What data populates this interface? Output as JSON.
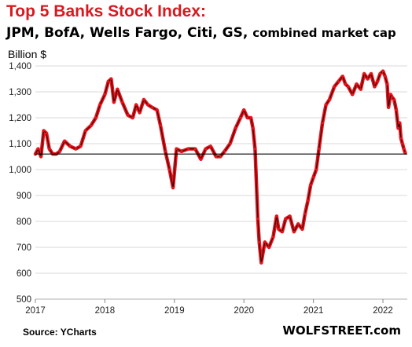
{
  "title": "Top 5 Banks Stock Index:",
  "subtitle_main": "JPM, BofA, Wells Fargo, Citi, GS,",
  "subtitle_tail": "combined market cap",
  "unit_label": "Billion $",
  "source": "Source: YCharts",
  "brand": "WOLFSTREET.com",
  "colors": {
    "line": "#e8141b",
    "line_core": "#3a0a0a",
    "grid": "#d9d9d9",
    "reference_line": "#000000"
  },
  "chart_data": {
    "type": "line",
    "title": "Top 5 Banks Stock Index:",
    "subtitle": "JPM, BofA, Wells Fargo, Citi, GS, combined market cap",
    "ylabel": "Billion $",
    "ylim": [
      500,
      1400
    ],
    "yticks": [
      500,
      600,
      700,
      800,
      900,
      1000,
      1100,
      1200,
      1300,
      1400
    ],
    "ytick_labels": [
      "500",
      "600",
      "700",
      "800",
      "900",
      "1,000",
      "1,100",
      "1,200",
      "1,300",
      "1,400"
    ],
    "xlim": [
      2017.0,
      2022.35
    ],
    "xticks": [
      2017,
      2018,
      2019,
      2020,
      2021,
      2022
    ],
    "xtick_labels": [
      "2017",
      "2018",
      "2019",
      "2020",
      "2021",
      "2022"
    ],
    "grid": "horizontal",
    "reference_line": 1060,
    "series": [
      {
        "x": [
          2017.0,
          2017.04,
          2017.08,
          2017.12,
          2017.16,
          2017.2,
          2017.25,
          2017.3,
          2017.35,
          2017.42,
          2017.5,
          2017.58,
          2017.65,
          2017.72,
          2017.8,
          2017.87,
          2017.93,
          2018.0,
          2018.05,
          2018.09,
          2018.13,
          2018.18,
          2018.25,
          2018.33,
          2018.4,
          2018.45,
          2018.5,
          2018.56,
          2018.62,
          2018.68,
          2018.75,
          2018.8,
          2018.87,
          2018.93,
          2018.98,
          2019.03,
          2019.1,
          2019.2,
          2019.3,
          2019.38,
          2019.45,
          2019.52,
          2019.6,
          2019.66,
          2019.72,
          2019.8,
          2019.88,
          2019.95,
          2020.0,
          2020.05,
          2020.1,
          2020.13,
          2020.16,
          2020.2,
          2020.22,
          2020.25,
          2020.3,
          2020.36,
          2020.42,
          2020.47,
          2020.5,
          2020.55,
          2020.6,
          2020.66,
          2020.72,
          2020.78,
          2020.84,
          2020.88,
          2020.92,
          2020.96,
          2021.0,
          2021.04,
          2021.08,
          2021.13,
          2021.18,
          2021.23,
          2021.3,
          2021.36,
          2021.42,
          2021.46,
          2021.5,
          2021.56,
          2021.62,
          2021.68,
          2021.73,
          2021.78,
          2021.83,
          2021.88,
          2021.92,
          2021.96,
          2022.0,
          2022.03,
          2022.06,
          2022.08,
          2022.11,
          2022.13,
          2022.16,
          2022.19,
          2022.22,
          2022.24,
          2022.26,
          2022.28,
          2022.3,
          2022.32
        ],
        "y": [
          1060,
          1080,
          1050,
          1150,
          1140,
          1080,
          1060,
          1060,
          1070,
          1110,
          1090,
          1080,
          1090,
          1150,
          1170,
          1200,
          1250,
          1290,
          1340,
          1350,
          1260,
          1310,
          1260,
          1210,
          1200,
          1250,
          1220,
          1270,
          1250,
          1240,
          1230,
          1170,
          1070,
          1000,
          930,
          1080,
          1070,
          1080,
          1080,
          1040,
          1080,
          1090,
          1050,
          1050,
          1070,
          1100,
          1160,
          1200,
          1230,
          1200,
          1200,
          1160,
          1080,
          810,
          720,
          640,
          720,
          700,
          740,
          820,
          770,
          760,
          810,
          820,
          760,
          790,
          770,
          830,
          880,
          940,
          970,
          1000,
          1080,
          1180,
          1250,
          1270,
          1320,
          1340,
          1360,
          1330,
          1320,
          1290,
          1330,
          1310,
          1370,
          1350,
          1370,
          1320,
          1340,
          1370,
          1380,
          1360,
          1330,
          1240,
          1290,
          1280,
          1270,
          1230,
          1160,
          1180,
          1120,
          1100,
          1080,
          1065
        ]
      }
    ]
  }
}
